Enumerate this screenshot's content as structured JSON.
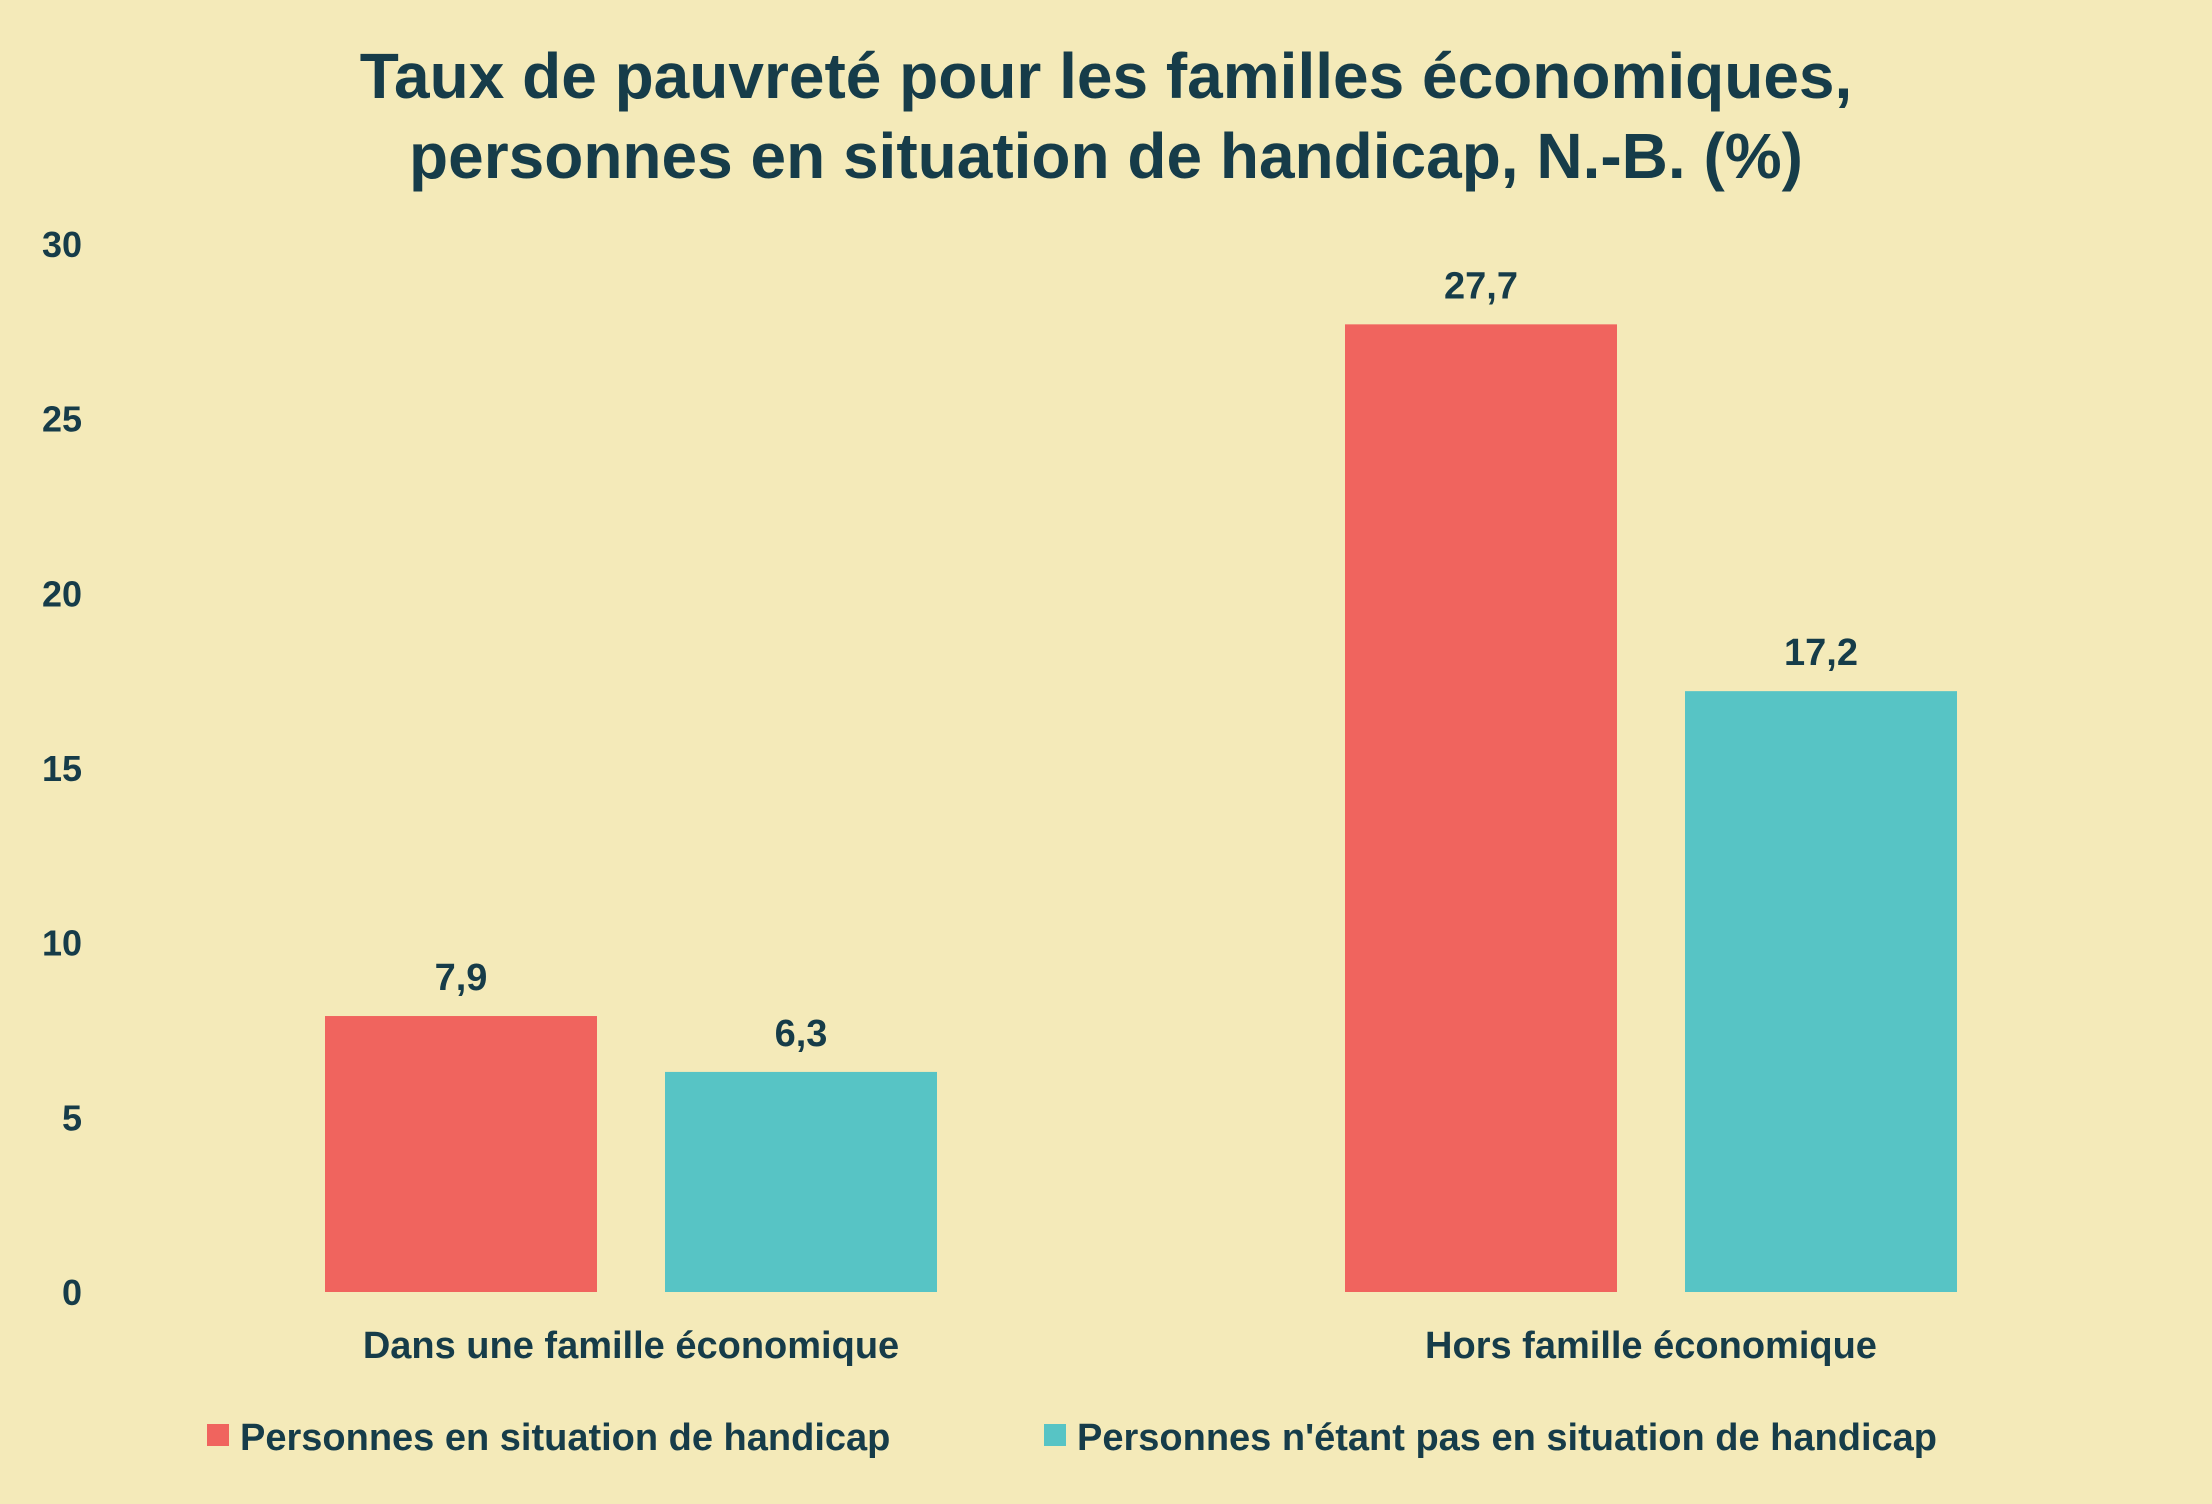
{
  "chart_data": {
    "type": "bar",
    "title_lines": [
      "Taux de pauvreté pour les familles économiques,",
      "personnes en situation de handicap, N.-B. (%)"
    ],
    "categories": [
      "Dans une famille économique",
      "Hors famille économique"
    ],
    "series": [
      {
        "name": "Personnes en situation de handicap",
        "color": "#F0645E",
        "values": [
          7.9,
          27.7
        ],
        "labels": [
          "7,9",
          "27,7"
        ]
      },
      {
        "name": "Personnes n'étant pas en situation de handicap",
        "color": "#57C4C5",
        "values": [
          6.3,
          17.2
        ],
        "labels": [
          "6,3",
          "17,2"
        ]
      }
    ],
    "y_ticks": [
      "0",
      "5",
      "10",
      "15",
      "20",
      "25",
      "30"
    ],
    "ylim": [
      0,
      30
    ],
    "grid": false,
    "legend_position": "bottom"
  }
}
